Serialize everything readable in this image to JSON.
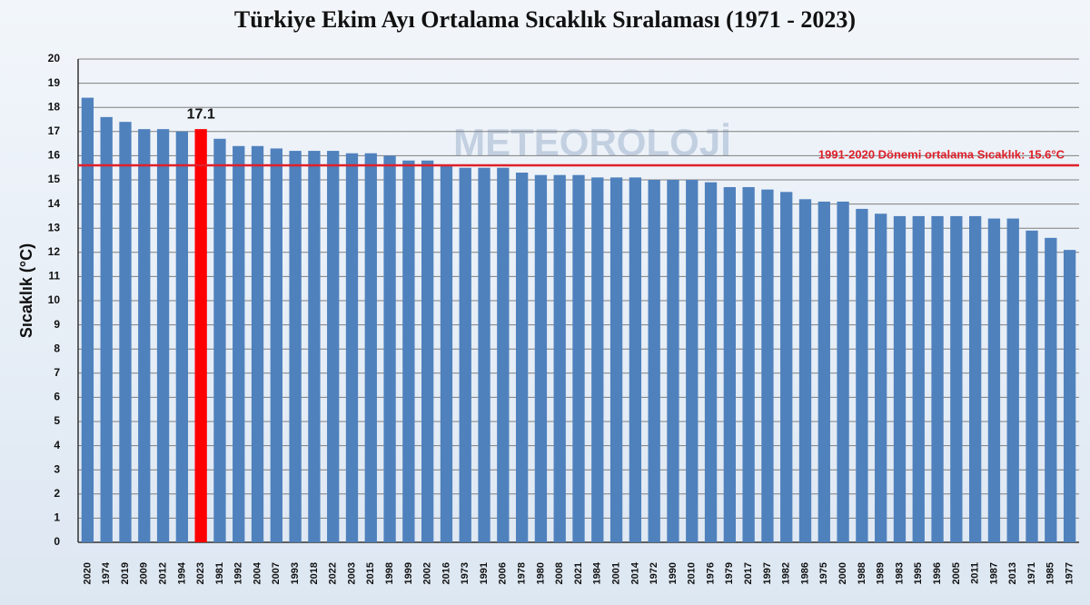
{
  "chart_data": {
    "type": "bar",
    "title": "Türkiye Ekim Ayı Ortalama Sıcaklık Sıralaması (1971 - 2023)",
    "y_label": "Sıcaklık (°C)",
    "watermark": "METEOROLOJİ",
    "categories": [
      "2020",
      "1974",
      "2019",
      "2009",
      "2012",
      "1994",
      "2023",
      "1981",
      "1992",
      "2004",
      "2007",
      "1993",
      "2018",
      "2022",
      "2003",
      "2015",
      "1998",
      "1999",
      "2002",
      "2016",
      "1973",
      "1991",
      "2006",
      "1978",
      "1980",
      "2008",
      "2021",
      "1984",
      "2001",
      "2014",
      "1972",
      "1990",
      "2010",
      "1976",
      "1979",
      "2017",
      "1997",
      "1982",
      "1986",
      "1975",
      "2000",
      "1988",
      "1989",
      "1983",
      "1995",
      "1996",
      "2005",
      "2011",
      "1987",
      "2013",
      "1971",
      "1985",
      "1977"
    ],
    "values": [
      18.4,
      17.6,
      17.4,
      17.1,
      17.1,
      17.0,
      17.1,
      16.7,
      16.4,
      16.4,
      16.3,
      16.2,
      16.2,
      16.2,
      16.1,
      16.1,
      16.0,
      15.8,
      15.8,
      15.6,
      15.5,
      15.5,
      15.5,
      15.3,
      15.2,
      15.2,
      15.2,
      15.1,
      15.1,
      15.1,
      15.0,
      15.0,
      15.0,
      14.9,
      14.7,
      14.7,
      14.6,
      14.5,
      14.2,
      14.1,
      14.1,
      13.8,
      13.6,
      13.5,
      13.5,
      13.5,
      13.5,
      13.5,
      13.4,
      13.4,
      12.9,
      12.6,
      12.1
    ],
    "value_labels": [
      null,
      null,
      null,
      null,
      null,
      null,
      "17.1",
      null,
      null,
      null,
      null,
      null,
      null,
      null,
      null,
      null,
      null,
      null,
      null,
      null,
      null,
      null,
      null,
      null,
      null,
      null,
      null,
      null,
      null,
      null,
      null,
      null,
      null,
      null,
      null,
      null,
      null,
      null,
      null,
      null,
      null,
      null,
      null,
      null,
      null,
      null,
      null,
      null,
      null,
      null,
      null,
      null,
      null
    ],
    "color": "#4f81bd",
    "highlight_color": "#ff0000",
    "ylim": [
      0,
      20
    ],
    "yticks": [
      0,
      1,
      2,
      3,
      4,
      5,
      6,
      7,
      8,
      9,
      10,
      11,
      12,
      13,
      14,
      15,
      16,
      17,
      18,
      19,
      20
    ],
    "grid": true,
    "reference_line": {
      "value": 15.6,
      "label": "1991-2020 Dönemi ortalama Sıcaklık: 15.6°C",
      "color": "#e0202a"
    }
  }
}
